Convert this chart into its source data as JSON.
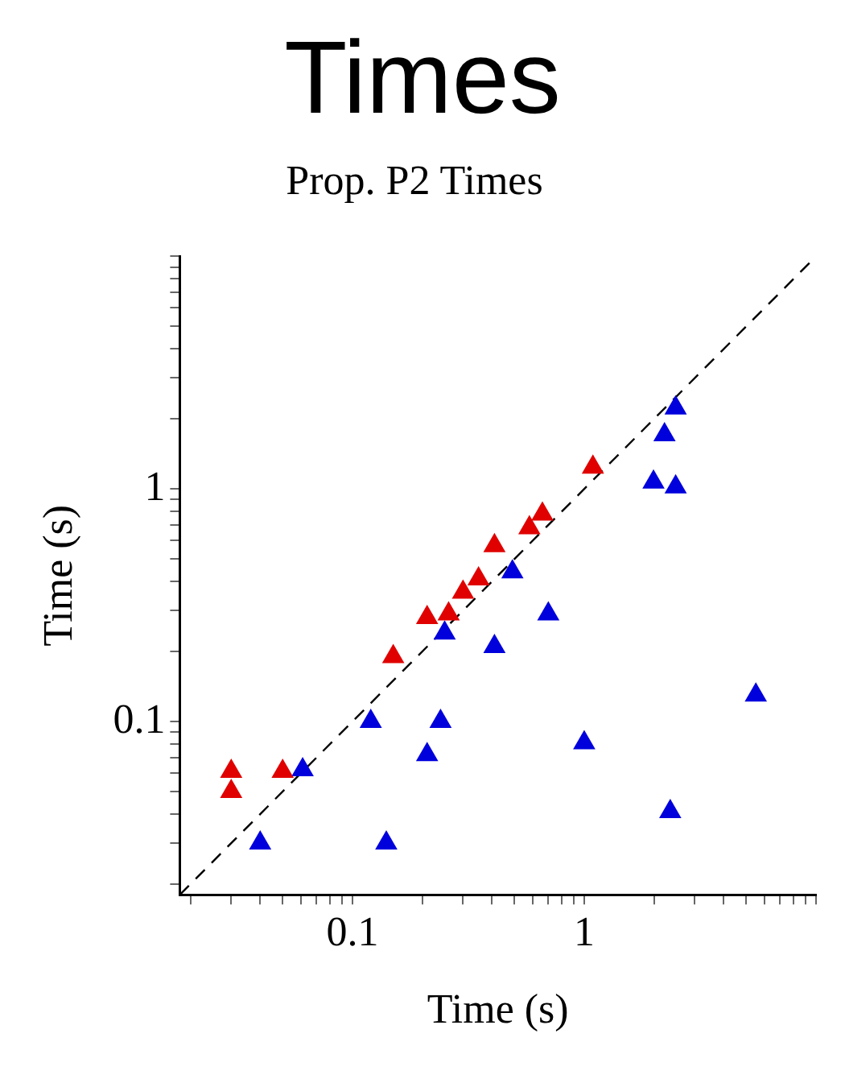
{
  "chart_data": {
    "type": "scatter",
    "title": "Times",
    "subtitle": "Prop. P2 Times",
    "xlabel": "Time (s)",
    "ylabel": "Time (s)",
    "log": "xy",
    "grid": false,
    "marker": "triangle",
    "xlim": [
      0.018,
      10
    ],
    "ylim": [
      0.018,
      10
    ],
    "xticks": [
      {
        "value": 0.02,
        "label": null
      },
      {
        "value": 0.03,
        "label": null
      },
      {
        "value": 0.04,
        "label": null
      },
      {
        "value": 0.05,
        "label": null
      },
      {
        "value": 0.06,
        "label": null
      },
      {
        "value": 0.07,
        "label": null
      },
      {
        "value": 0.08,
        "label": null
      },
      {
        "value": 0.09,
        "label": null
      },
      0.1,
      {
        "value": 0.2,
        "label": null
      },
      {
        "value": 0.3,
        "label": null
      },
      {
        "value": 0.4,
        "label": null
      },
      {
        "value": 0.5,
        "label": null
      },
      {
        "value": 0.6,
        "label": null
      },
      {
        "value": 0.7,
        "label": null
      },
      {
        "value": 0.8,
        "label": null
      },
      {
        "value": 0.9,
        "label": null
      },
      1,
      {
        "value": 2,
        "label": null
      },
      {
        "value": 3,
        "label": null
      },
      {
        "value": 4,
        "label": null
      },
      {
        "value": 5,
        "label": null
      },
      {
        "value": 6,
        "label": null
      },
      {
        "value": 7,
        "label": null
      },
      {
        "value": 8,
        "label": null
      },
      {
        "value": 9,
        "label": null
      },
      {
        "value": 10,
        "label": null
      }
    ],
    "yticks": [
      {
        "value": 0.02,
        "label": null
      },
      {
        "value": 0.03,
        "label": null
      },
      {
        "value": 0.04,
        "label": null
      },
      {
        "value": 0.05,
        "label": null
      },
      {
        "value": 0.06,
        "label": null
      },
      {
        "value": 0.07,
        "label": null
      },
      {
        "value": 0.08,
        "label": null
      },
      {
        "value": 0.09,
        "label": null
      },
      0.1,
      {
        "value": 0.2,
        "label": null
      },
      {
        "value": 0.3,
        "label": null
      },
      {
        "value": 0.4,
        "label": null
      },
      {
        "value": 0.5,
        "label": null
      },
      {
        "value": 0.6,
        "label": null
      },
      {
        "value": 0.7,
        "label": null
      },
      {
        "value": 0.8,
        "label": null
      },
      {
        "value": 0.9,
        "label": null
      },
      1,
      {
        "value": 2,
        "label": null
      },
      {
        "value": 3,
        "label": null
      },
      {
        "value": 4,
        "label": null
      },
      {
        "value": 5,
        "label": null
      },
      {
        "value": 6,
        "label": null
      },
      {
        "value": 7,
        "label": null
      },
      {
        "value": 8,
        "label": null
      },
      {
        "value": 9,
        "label": null
      },
      {
        "value": 10,
        "label": null
      }
    ],
    "series": [
      {
        "type": "line",
        "color": "#000000",
        "line_style": "dashed",
        "marker": "none",
        "x": [
          0.018,
          10
        ],
        "values": [
          0.018,
          10
        ]
      },
      {
        "color": "#e00000",
        "x": [
          0.03,
          0.03,
          0.05,
          0.15,
          0.21,
          0.26,
          0.3,
          0.35,
          0.41,
          0.58,
          0.66,
          1.09
        ],
        "values": [
          0.061,
          0.05,
          0.061,
          0.19,
          0.28,
          0.29,
          0.36,
          0.41,
          0.57,
          0.68,
          0.78,
          1.24
        ]
      },
      {
        "color": "#0000dd",
        "x": [
          0.04,
          0.061,
          0.12,
          0.14,
          0.21,
          0.24,
          0.25,
          0.41,
          0.49,
          0.7,
          1.0,
          1.99,
          2.48,
          2.22,
          2.48,
          2.35,
          5.5
        ],
        "values": [
          0.03,
          0.062,
          0.1,
          0.03,
          0.072,
          0.1,
          0.24,
          0.21,
          0.44,
          0.29,
          0.081,
          1.07,
          1.02,
          1.71,
          2.23,
          0.041,
          0.13
        ]
      }
    ]
  }
}
